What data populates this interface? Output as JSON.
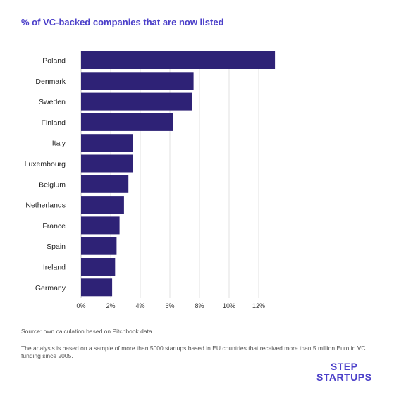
{
  "title": "% of VC-backed companies that are now listed",
  "source": "Source: own calculation  based on Pitchbook data",
  "note": "The analysis is based on a sample of more than 5000 startups based in EU countries that received more than 5 million Euro in VC funding since 2005.",
  "logo": {
    "line1": "STEP",
    "line2": "STARTUPS"
  },
  "colors": {
    "bar": "#2e2276",
    "title": "#4b3fc9",
    "grid": "#e2e2e2"
  },
  "chart_data": {
    "type": "bar",
    "orientation": "horizontal",
    "categories": [
      "Poland",
      "Denmark",
      "Sweden",
      "Finland",
      "Italy",
      "Luxembourg",
      "Belgium",
      "Netherlands",
      "France",
      "Spain",
      "Ireland",
      "Germany"
    ],
    "values": [
      13.1,
      7.6,
      7.5,
      6.2,
      3.5,
      3.5,
      3.2,
      2.9,
      2.6,
      2.4,
      2.3,
      2.1
    ],
    "xlim": [
      0,
      13
    ],
    "xticks": [
      0,
      2,
      4,
      6,
      8,
      10,
      12
    ],
    "xtick_labels": [
      "0%",
      "2%",
      "4%",
      "6%",
      "8%",
      "10%",
      "12%"
    ],
    "grid": "vertical"
  }
}
